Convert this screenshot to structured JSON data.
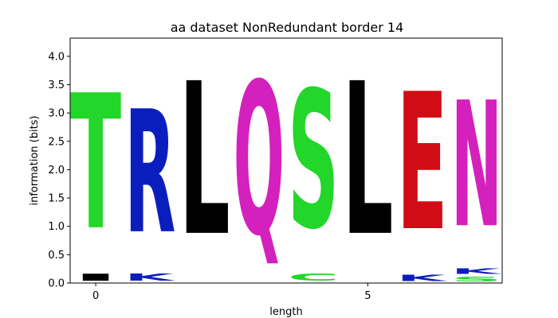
{
  "chart_data": {
    "type": "sequence-logo",
    "title": "aa dataset NonRedundant border 14",
    "xlabel": "length",
    "ylabel": "information (bits)",
    "ylim": [
      0,
      4.32
    ],
    "y_ticks": [
      "0.0",
      "0.5",
      "1.0",
      "1.5",
      "2.0",
      "2.5",
      "3.0",
      "3.5",
      "4.0"
    ],
    "x_ticks": [
      {
        "position": 0,
        "label": "0"
      },
      {
        "position": 5,
        "label": "5"
      }
    ],
    "xlim": [
      -0.47,
      7.47
    ],
    "colors": {
      "T": "#22d62a",
      "S": "#22d62a",
      "C": "#22d62a",
      "R": "#0a1ebe",
      "K": "#0a1ebe",
      "L": "#000000",
      "I": "#000000",
      "Q": "#d421bd",
      "N": "#d421bd",
      "E": "#d20c14"
    },
    "positions": [
      {
        "position": 0,
        "letters": [
          {
            "letter": "I",
            "bits": 0.2
          },
          {
            "letter": "T",
            "bits": 3.82
          }
        ]
      },
      {
        "position": 1,
        "letters": [
          {
            "letter": "K",
            "bits": 0.2
          },
          {
            "letter": "R",
            "bits": 3.48
          }
        ]
      },
      {
        "position": 2,
        "letters": [
          {
            "letter": "L",
            "bits": 4.32
          }
        ]
      },
      {
        "position": 3,
        "letters": [
          {
            "letter": "Q",
            "bits": 4.32
          }
        ]
      },
      {
        "position": 4,
        "letters": [
          {
            "letter": "C",
            "bits": 0.2
          },
          {
            "letter": "S",
            "bits": 3.9
          }
        ]
      },
      {
        "position": 5,
        "letters": [
          {
            "letter": "L",
            "bits": 4.32
          }
        ]
      },
      {
        "position": 6,
        "letters": [
          {
            "letter": "K",
            "bits": 0.17
          },
          {
            "letter": "E",
            "bits": 3.89
          }
        ]
      },
      {
        "position": 7,
        "letters": [
          {
            "letter": "S",
            "bits": 0.13
          },
          {
            "letter": "K",
            "bits": 0.16
          },
          {
            "letter": "N",
            "bits": 3.56
          }
        ]
      }
    ]
  }
}
